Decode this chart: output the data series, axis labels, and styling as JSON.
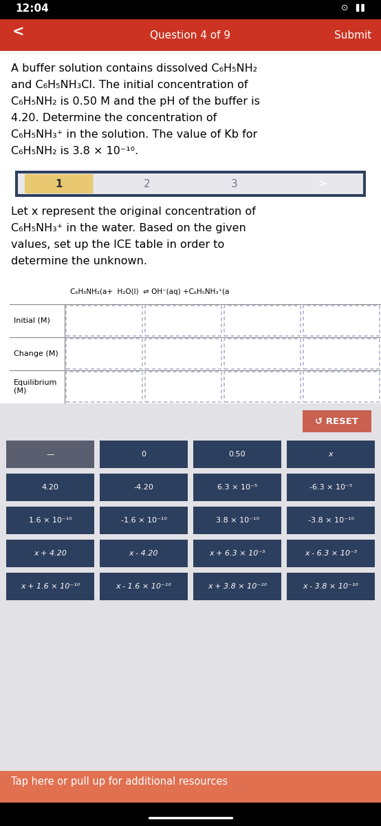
{
  "status_bar_time": "12:04",
  "status_bar_bg": "#000000",
  "nav_bar_bg": "#cc3322",
  "nav_bar_text": "Question 4 of 9",
  "nav_bar_submit": "Submit",
  "question_text_lines": [
    "A buffer solution contains dissolved C₆H₅NH₂",
    "and C₆H₅NH₃Cl. The initial concentration of",
    "C₆H₅NH₂ is 0.50 M and the pH of the buffer is",
    "4.20. Determine the concentration of",
    "C₆H₅NH₃⁺ in the solution. The value of Kb for",
    "C₆H₅NH₂ is 3.8 × 10⁻¹⁰."
  ],
  "step_labels": [
    "1",
    "2",
    "3",
    ">"
  ],
  "instruction_text_lines": [
    "Let x represent the original concentration of",
    "C₆H₅NH₃⁺ in the water. Based on the given",
    "values, set up the ICE table in order to",
    "determine the unknown."
  ],
  "table_header": "C₆H₅NH₂(a+  H₂O(l)  ⇌ OH⁻(aq) +C₆H₅NH₃⁺(a",
  "table_row_labels": [
    "Initial (M)",
    "Change (M)",
    "Equilibrium\n(M)"
  ],
  "table_bg": "#ffffff",
  "table_border": "#888888",
  "reset_btn_color": "#c96050",
  "reset_btn_text": "↺ RESET",
  "button_rows": [
    [
      "—",
      "0",
      "0.50",
      "x"
    ],
    [
      "4.20",
      "-4.20",
      "6.3 × 10⁻⁵",
      "-6.3 × 10⁻⁵"
    ],
    [
      "1.6 × 10⁻¹⁰",
      "-1.6 × 10⁻¹⁰",
      "3.8 × 10⁻¹⁰",
      "-3.8 × 10⁻¹⁰"
    ],
    [
      "x + 4.20",
      "x - 4.20",
      "x + 6.3 × 10⁻⁵",
      "x - 6.3 × 10⁻⁵"
    ],
    [
      "x + 1.6 × 10⁻¹⁰",
      "x - 1.6 × 10⁻¹⁰",
      "x + 3.8 × 10⁻¹⁰",
      "x - 3.8 × 10⁻¹⁰"
    ]
  ],
  "btn_colors": [
    [
      "#5a5e6e",
      "#2d3f5e",
      "#2d3f5e",
      "#2d3f5e"
    ],
    [
      "#2d3f5e",
      "#2d3f5e",
      "#2d3f5e",
      "#2d3f5e"
    ],
    [
      "#2d3f5e",
      "#2d3f5e",
      "#2d3f5e",
      "#2d3f5e"
    ],
    [
      "#2d3f5e",
      "#2d3f5e",
      "#2d3f5e",
      "#2d3f5e"
    ],
    [
      "#2d3f5e",
      "#2d3f5e",
      "#2d3f5e",
      "#2d3f5e"
    ]
  ],
  "bg_color": "#e2e2e6",
  "footer_bg": "#e07050",
  "footer_text": "Tap here or pull up for additional resources",
  "bottom_bar_bg": "#000000"
}
